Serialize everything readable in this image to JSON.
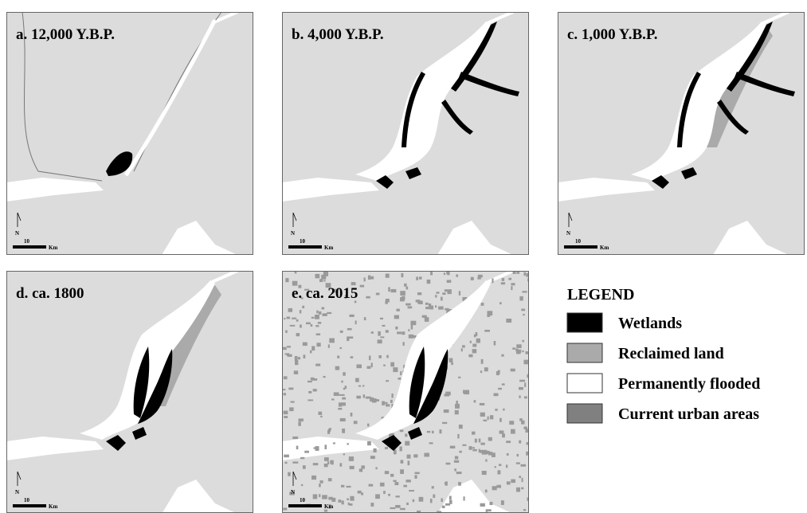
{
  "panels": [
    {
      "title": "a. 12,000 Y.B.P.",
      "scale_label": "10",
      "scale_unit": "Km",
      "north": "N"
    },
    {
      "title": "b. 4,000 Y.B.P.",
      "scale_label": "10",
      "scale_unit": "Km",
      "north": "N"
    },
    {
      "title": "c. 1,000 Y.B.P.",
      "scale_label": "10",
      "scale_unit": "Km",
      "north": "N"
    },
    {
      "title": "d. ca. 1800",
      "scale_label": "10",
      "scale_unit": "Km",
      "north": "N"
    },
    {
      "title": "e. ca. 2015",
      "scale_label": "10",
      "scale_unit": "Km",
      "north": "N"
    }
  ],
  "legend": {
    "title": "LEGEND",
    "items": [
      {
        "label": "Wetlands",
        "color": "#000000"
      },
      {
        "label": "Reclaimed land",
        "color": "#aaaaaa"
      },
      {
        "label": "Permanently flooded",
        "color": "#ffffff"
      },
      {
        "label": "Current urban areas",
        "color": "#808080"
      }
    ]
  }
}
